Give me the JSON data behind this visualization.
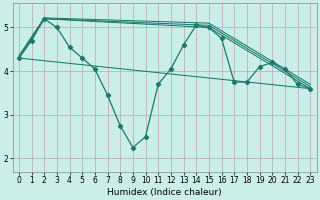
{
  "bg_color": "#cceee8",
  "grid_color": "#b8a8b8",
  "line_color": "#1a7a6e",
  "xlabel": "Humidex (Indice chaleur)",
  "ylim": [
    1.7,
    5.55
  ],
  "xlim": [
    -0.5,
    23.5
  ],
  "yticks": [
    2,
    3,
    4,
    5
  ],
  "xticks": [
    0,
    1,
    2,
    3,
    4,
    5,
    6,
    7,
    8,
    9,
    10,
    11,
    12,
    13,
    14,
    15,
    16,
    17,
    18,
    19,
    20,
    21,
    22,
    23
  ],
  "main_x": [
    0,
    1,
    2,
    3,
    4,
    5,
    6,
    7,
    8,
    9,
    10,
    11,
    12,
    13,
    14,
    15,
    16,
    17,
    18,
    19,
    20,
    21,
    22,
    23
  ],
  "main_y": [
    4.3,
    4.7,
    5.2,
    5.0,
    4.55,
    4.3,
    4.05,
    3.45,
    2.75,
    2.25,
    2.5,
    3.7,
    4.05,
    4.6,
    5.05,
    5.0,
    4.75,
    3.75,
    3.75,
    4.1,
    4.2,
    4.05,
    3.7,
    3.6
  ],
  "straight_lines": [
    {
      "x": [
        0,
        23
      ],
      "y": [
        4.3,
        3.6
      ]
    },
    {
      "x": [
        0,
        2,
        15,
        23
      ],
      "y": [
        4.3,
        5.2,
        5.0,
        3.6
      ]
    },
    {
      "x": [
        0,
        2,
        15,
        23
      ],
      "y": [
        4.3,
        5.2,
        5.05,
        3.65
      ]
    },
    {
      "x": [
        0,
        2,
        15,
        23
      ],
      "y": [
        4.35,
        5.22,
        5.1,
        3.7
      ]
    }
  ],
  "xlabel_fontsize": 6.5,
  "tick_labelsize": 5.5
}
